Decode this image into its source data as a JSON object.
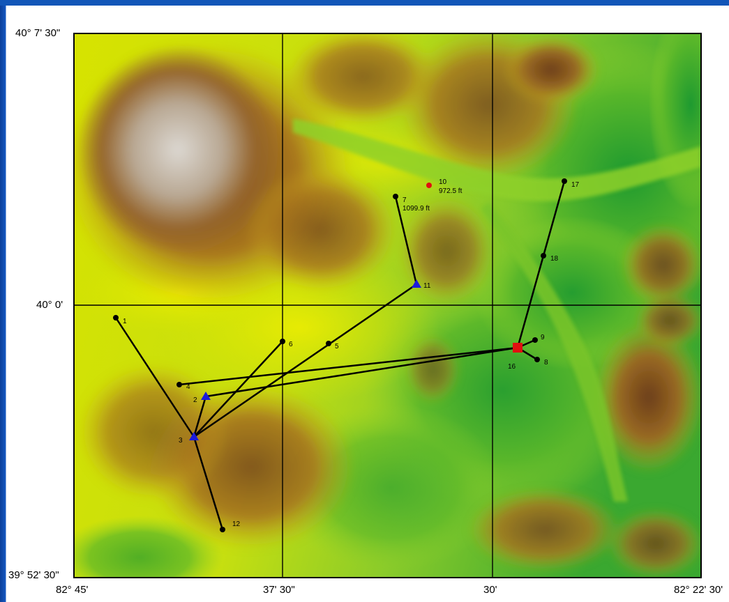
{
  "axes": {
    "lat_top": "40° 7' 30\"",
    "lat_mid": "40° 0'",
    "lat_bottom": "39° 52' 30\"",
    "lon_left": "82° 45'",
    "lon_mid1": "37' 30\"",
    "lon_mid2": "30'",
    "lon_right": "82° 22' 30'"
  },
  "points": [
    {
      "id": "1",
      "label": "1",
      "shape": "dot",
      "color": "#000000"
    },
    {
      "id": "2",
      "label": "2",
      "shape": "triangle",
      "color": "#1a1adc"
    },
    {
      "id": "3",
      "label": "3",
      "shape": "triangle",
      "color": "#1a1adc"
    },
    {
      "id": "4",
      "label": "4",
      "shape": "dot",
      "color": "#000000"
    },
    {
      "id": "5",
      "label": "5",
      "shape": "dot",
      "color": "#000000"
    },
    {
      "id": "6",
      "label": "6",
      "shape": "dot",
      "color": "#000000"
    },
    {
      "id": "7",
      "label": "7",
      "sublabel": "1099.9 ft",
      "shape": "dot",
      "color": "#000000"
    },
    {
      "id": "8",
      "label": "8",
      "shape": "dot",
      "color": "#000000"
    },
    {
      "id": "9",
      "label": "9",
      "shape": "dot",
      "color": "#000000"
    },
    {
      "id": "10",
      "label": "10",
      "sublabel": "972.5 ft",
      "shape": "dot",
      "color": "#e01010"
    },
    {
      "id": "11",
      "label": "11",
      "shape": "triangle",
      "color": "#1a1adc"
    },
    {
      "id": "12",
      "label": "12",
      "shape": "dot",
      "color": "#000000"
    },
    {
      "id": "16",
      "label": "16",
      "shape": "square",
      "color": "#e01010"
    },
    {
      "id": "17",
      "label": "17",
      "shape": "dot",
      "color": "#000000"
    },
    {
      "id": "18",
      "label": "18",
      "shape": "dot",
      "color": "#000000"
    }
  ],
  "connections": [
    [
      "1",
      "3"
    ],
    [
      "3",
      "12"
    ],
    [
      "3",
      "2"
    ],
    [
      "3",
      "6"
    ],
    [
      "3",
      "11"
    ],
    [
      "2",
      "16"
    ],
    [
      "4",
      "16"
    ],
    [
      "11",
      "7"
    ],
    [
      "16",
      "9"
    ],
    [
      "16",
      "8"
    ],
    [
      "16",
      "18"
    ],
    [
      "18",
      "17"
    ]
  ],
  "colors": {
    "relief_low": "#1f9a2c",
    "relief_mid_low": "#7ccb2a",
    "relief_mid": "#e8ec00",
    "relief_mid_high": "#b5891f",
    "relief_high": "#7a4a1e",
    "relief_peak": "#d8d4cf",
    "grid": "#000000",
    "frame_blue": "#1256b8"
  }
}
